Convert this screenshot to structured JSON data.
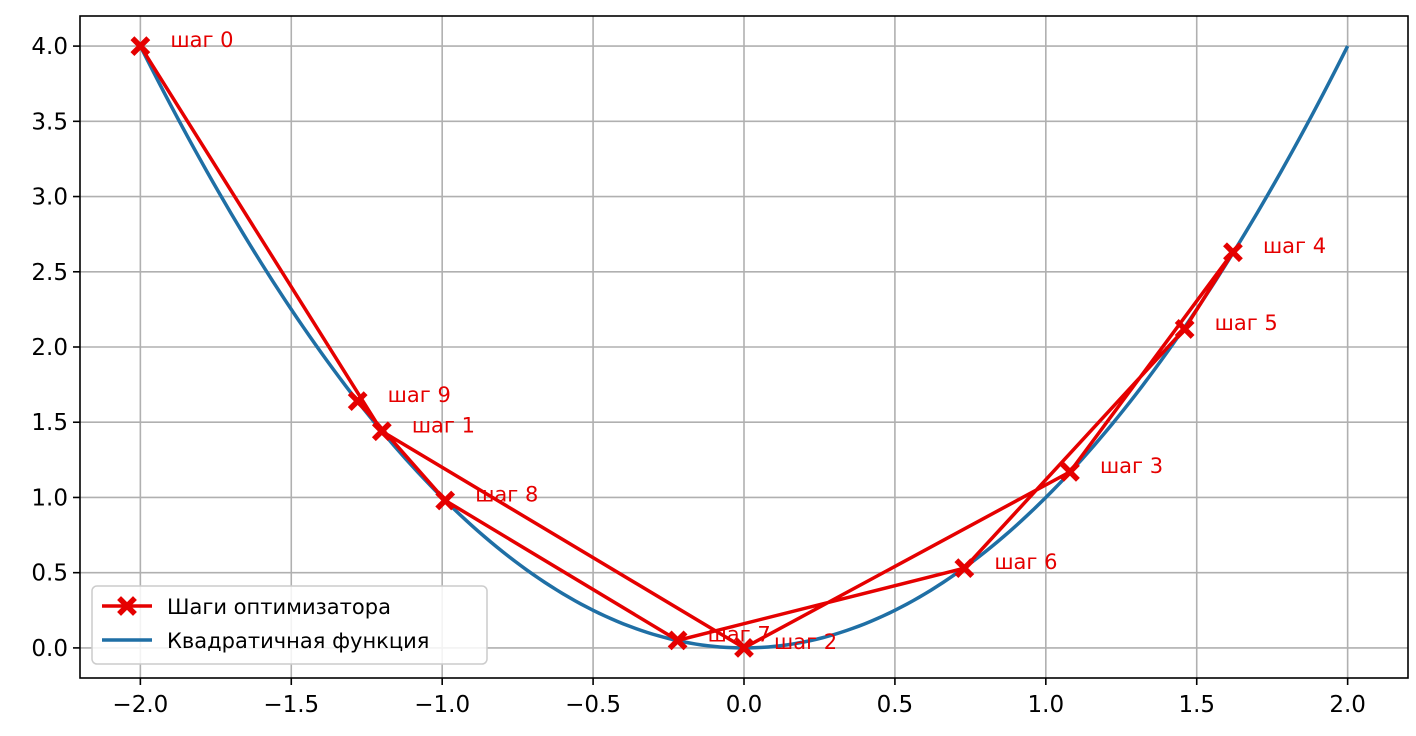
{
  "chart_data": {
    "type": "line",
    "title": "",
    "xlabel": "",
    "ylabel": "",
    "xlim": [
      -2.2,
      2.2
    ],
    "ylim": [
      -0.2,
      4.2
    ],
    "grid": true,
    "x_ticks": [
      -2.0,
      -1.5,
      -1.0,
      -0.5,
      0.0,
      0.5,
      1.0,
      1.5,
      2.0
    ],
    "x_tick_labels": [
      "−2.0",
      "−1.5",
      "−1.0",
      "−0.5",
      "0.0",
      "0.5",
      "1.0",
      "1.5",
      "2.0"
    ],
    "y_ticks": [
      0.0,
      0.5,
      1.0,
      1.5,
      2.0,
      2.5,
      3.0,
      3.5,
      4.0
    ],
    "y_tick_labels": [
      "0.0",
      "0.5",
      "1.0",
      "1.5",
      "2.0",
      "2.5",
      "3.0",
      "3.5",
      "4.0"
    ],
    "legend_position": "lower-left",
    "series": [
      {
        "name": "Шаги оптимизатора",
        "color": "#e50000",
        "marker": "x-filled",
        "points": [
          {
            "x": -2.0,
            "y": 4.0,
            "label": "шаг 0"
          },
          {
            "x": -1.2,
            "y": 1.44,
            "label": "шаг 1"
          },
          {
            "x": 0.0,
            "y": 0.0,
            "label": "шаг 2"
          },
          {
            "x": 1.08,
            "y": 1.17,
            "label": "шаг 3"
          },
          {
            "x": 1.62,
            "y": 2.63,
            "label": "шаг 4"
          },
          {
            "x": 1.46,
            "y": 2.12,
            "label": "шаг 5"
          },
          {
            "x": 0.73,
            "y": 0.53,
            "label": "шаг 6"
          },
          {
            "x": -0.22,
            "y": 0.05,
            "label": "шаг 7"
          },
          {
            "x": -0.99,
            "y": 0.98,
            "label": "шаг 8"
          },
          {
            "x": -1.28,
            "y": 1.64,
            "label": "шаг 9"
          }
        ]
      },
      {
        "name": "Квадратичная функция",
        "color": "#1f6fa5",
        "function": "y = x^2",
        "x_range": [
          -2.0,
          2.0
        ]
      }
    ]
  }
}
